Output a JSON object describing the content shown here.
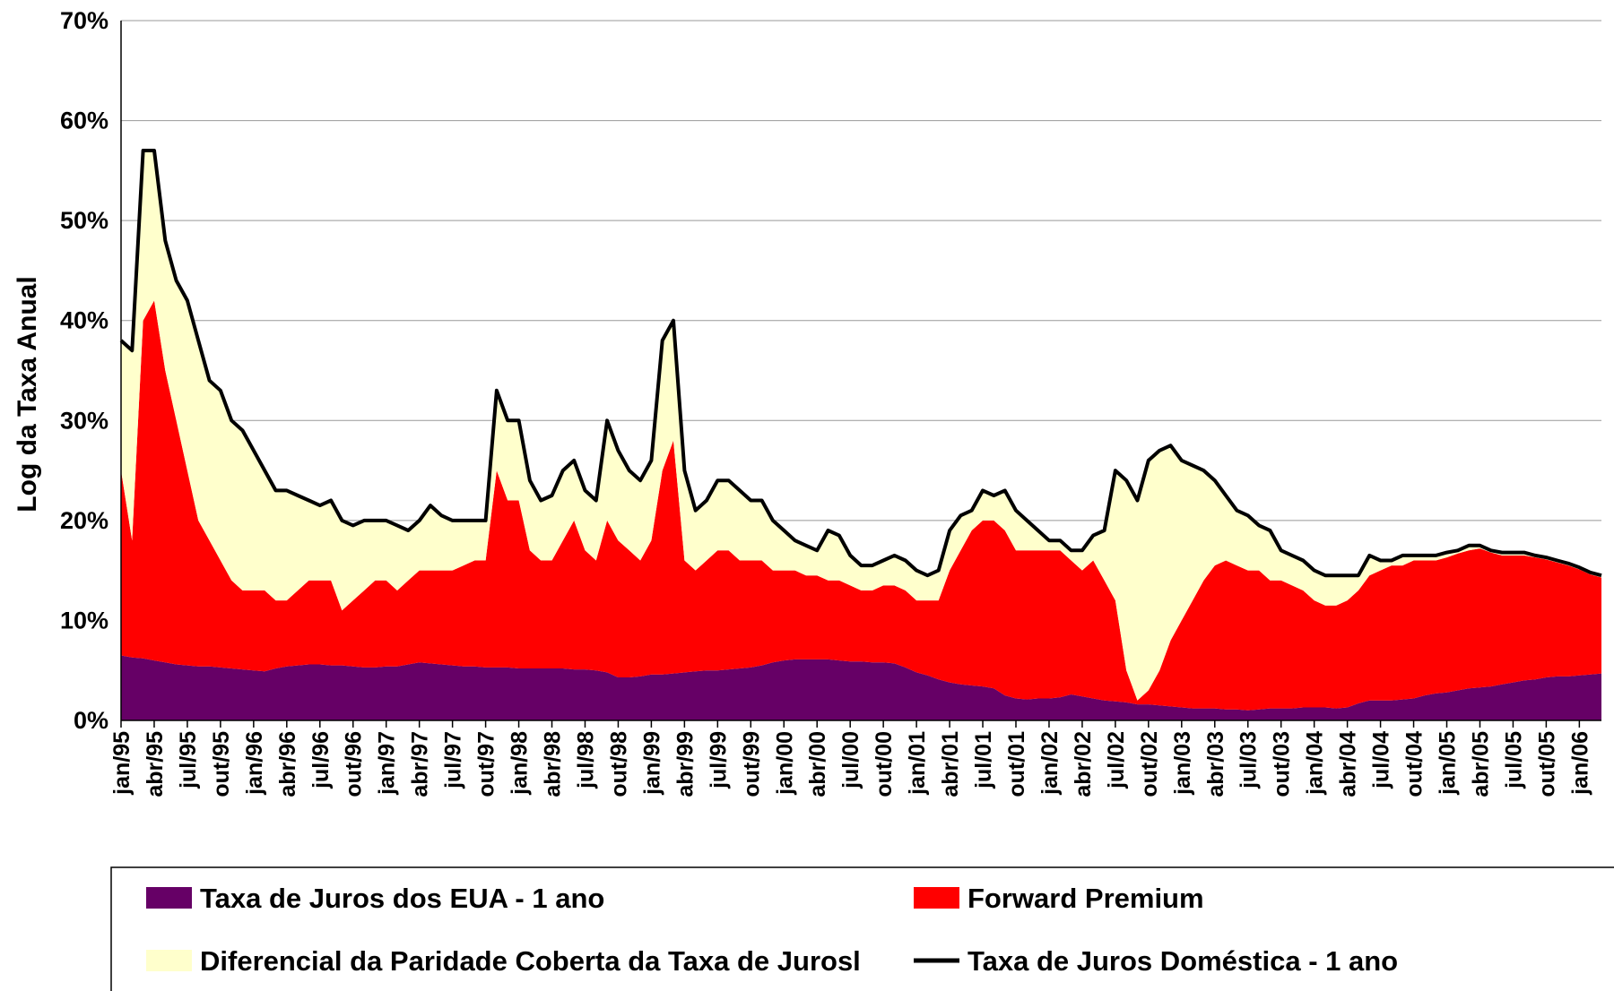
{
  "chart_data": {
    "type": "area",
    "y_label": "Log da Taxa Anual",
    "ylim": [
      0,
      70
    ],
    "yticks": [
      {
        "value": 0,
        "label": "0%"
      },
      {
        "value": 10,
        "label": "10%"
      },
      {
        "value": 20,
        "label": "20%"
      },
      {
        "value": 30,
        "label": "30%"
      },
      {
        "value": 40,
        "label": "40%"
      },
      {
        "value": 50,
        "label": "50%"
      },
      {
        "value": 60,
        "label": "60%"
      },
      {
        "value": 70,
        "label": "70%"
      }
    ],
    "grid": true,
    "categories": [
      "jan/95",
      null,
      null,
      "abr/95",
      null,
      null,
      "jul/95",
      null,
      null,
      "out/95",
      null,
      null,
      "jan/96",
      null,
      null,
      "abr/96",
      null,
      null,
      "jul/96",
      null,
      null,
      "out/96",
      null,
      null,
      "jan/97",
      null,
      null,
      "abr/97",
      null,
      null,
      "jul/97",
      null,
      null,
      "out/97",
      null,
      null,
      "jan/98",
      null,
      null,
      "abr/98",
      null,
      null,
      "jul/98",
      null,
      null,
      "out/98",
      null,
      null,
      "jan/99",
      null,
      null,
      "abr/99",
      null,
      null,
      "jul/99",
      null,
      null,
      "out/99",
      null,
      null,
      "jan/00",
      null,
      null,
      "abr/00",
      null,
      null,
      "jul/00",
      null,
      null,
      "out/00",
      null,
      null,
      "jan/01",
      null,
      null,
      "abr/01",
      null,
      null,
      "jul/01",
      null,
      null,
      "out/01",
      null,
      null,
      "jan/02",
      null,
      null,
      "abr/02",
      null,
      null,
      "jul/02",
      null,
      null,
      "out/02",
      null,
      null,
      "jan/03",
      null,
      null,
      "abr/03",
      null,
      null,
      "jul/03",
      null,
      null,
      "out/03",
      null,
      null,
      "jan/04",
      null,
      null,
      "abr/04",
      null,
      null,
      "jul/04",
      null,
      null,
      "out/04",
      null,
      null,
      "jan/05",
      null,
      null,
      "abr/05",
      null,
      null,
      "jul/05",
      null,
      null,
      "out/05",
      null,
      null,
      "jan/06",
      null,
      null
    ],
    "series": [
      {
        "name": "Taxa de Juros dos EUA - 1 ano",
        "type": "area",
        "color": "#660066",
        "values": [
          6.5,
          6.3,
          6.2,
          6,
          5.8,
          5.6,
          5.5,
          5.4,
          5.4,
          5.3,
          5.2,
          5.1,
          5,
          4.9,
          5.2,
          5.4,
          5.5,
          5.6,
          5.6,
          5.5,
          5.5,
          5.4,
          5.3,
          5.3,
          5.4,
          5.4,
          5.6,
          5.8,
          5.7,
          5.6,
          5.5,
          5.4,
          5.4,
          5.3,
          5.3,
          5.3,
          5.2,
          5.2,
          5.2,
          5.2,
          5.2,
          5.1,
          5.1,
          5,
          4.8,
          4.3,
          4.3,
          4.4,
          4.6,
          4.6,
          4.7,
          4.8,
          4.9,
          5,
          5,
          5.1,
          5.2,
          5.3,
          5.5,
          5.8,
          6,
          6.1,
          6.1,
          6.1,
          6.1,
          6,
          5.9,
          5.9,
          5.8,
          5.8,
          5.7,
          5.3,
          4.8,
          4.5,
          4.1,
          3.8,
          3.6,
          3.5,
          3.4,
          3.2,
          2.5,
          2.2,
          2.1,
          2.2,
          2.2,
          2.3,
          2.6,
          2.4,
          2.2,
          2,
          1.9,
          1.8,
          1.6,
          1.6,
          1.5,
          1.4,
          1.3,
          1.2,
          1.2,
          1.2,
          1.1,
          1.1,
          1,
          1.1,
          1.2,
          1.2,
          1.2,
          1.3,
          1.3,
          1.3,
          1.2,
          1.3,
          1.7,
          2,
          2,
          2,
          2.1,
          2.2,
          2.5,
          2.7,
          2.8,
          3,
          3.2,
          3.3,
          3.4,
          3.6,
          3.8,
          4,
          4.1,
          4.3,
          4.4,
          4.4,
          4.5,
          4.6,
          4.7
        ]
      },
      {
        "name": "Forward Premium",
        "type": "area",
        "color": "#ff0000",
        "values": [
          18.5,
          11.7,
          33.8,
          36,
          29.2,
          24.4,
          19.5,
          14.6,
          12.6,
          10.7,
          8.8,
          7.9,
          8,
          8.1,
          6.8,
          6.6,
          7.5,
          8.4,
          8.4,
          8.5,
          5.5,
          6.6,
          7.7,
          8.7,
          8.6,
          7.6,
          8.4,
          9.2,
          9.3,
          9.4,
          9.5,
          10.1,
          10.6,
          10.7,
          19.7,
          16.7,
          16.8,
          11.8,
          10.8,
          10.8,
          12.8,
          14.9,
          11.9,
          11,
          15.2,
          13.7,
          12.7,
          11.6,
          13.4,
          20.4,
          23.3,
          11.2,
          10.1,
          11,
          12,
          11.9,
          10.8,
          10.7,
          10.5,
          9.2,
          9,
          8.9,
          8.4,
          8.4,
          7.9,
          8,
          7.6,
          7.1,
          7.2,
          7.7,
          7.8,
          7.7,
          7.2,
          7.5,
          7.9,
          11.2,
          13.4,
          15.5,
          16.6,
          16.8,
          16.5,
          14.8,
          14.9,
          14.8,
          14.8,
          14.7,
          13.4,
          12.6,
          13.8,
          12,
          10.1,
          3.2,
          0.4,
          1.4,
          3.5,
          6.6,
          8.7,
          10.8,
          12.8,
          14.3,
          14.9,
          14.4,
          14,
          13.9,
          12.8,
          12.8,
          12.3,
          11.7,
          10.7,
          10.2,
          10.3,
          10.7,
          11.3,
          12.5,
          13,
          13.5,
          13.4,
          13.8,
          13.5,
          13.3,
          13.5,
          13.7,
          13.8,
          13.9,
          13.4,
          12.9,
          12.7,
          12.5,
          12.2,
          11.8,
          11.4,
          11.1,
          10.6,
          10,
          9.6
        ]
      },
      {
        "name": "Diferencial da Paridade Coberta da Taxa de Jurosl",
        "type": "area",
        "color": "#ffffcc",
        "values": [
          13,
          19,
          17,
          15,
          13,
          14,
          17,
          18,
          16,
          17,
          16,
          16,
          14,
          12,
          11,
          11,
          9.5,
          8,
          7.5,
          8,
          9,
          7.5,
          7,
          6,
          6,
          6.5,
          5,
          5,
          6.5,
          5.5,
          5,
          4.5,
          4,
          4,
          8,
          8,
          8,
          7,
          6,
          6.5,
          7,
          6,
          6,
          6,
          10,
          9,
          8,
          8,
          8,
          13,
          12,
          9,
          6,
          6,
          7,
          7,
          7,
          6,
          6,
          5,
          4,
          3,
          3,
          2.5,
          5,
          4.5,
          3,
          2.5,
          2.5,
          2.5,
          3,
          3,
          3,
          2.5,
          3,
          4,
          3.5,
          2,
          3,
          2.5,
          4,
          4,
          3,
          2,
          1,
          1,
          1,
          2,
          2.5,
          5,
          13,
          19,
          20,
          23,
          22,
          19.5,
          16,
          13.5,
          11,
          8.5,
          6.5,
          5.5,
          5.5,
          4.5,
          5,
          3,
          3,
          3,
          3,
          3,
          3,
          2.5,
          1.5,
          2,
          1,
          0.5,
          1,
          0.5,
          0.5,
          0.5,
          0.5,
          0.3,
          0.5,
          0.3,
          0.2,
          0.3,
          0.3,
          0.3,
          0.2,
          0.2,
          0.2,
          0.2,
          0.2,
          0.2,
          0.2
        ]
      },
      {
        "name": "Taxa de Juros Doméstica - 1 ano",
        "type": "line",
        "color": "#000000",
        "values": [
          38,
          37,
          57,
          57,
          48,
          44,
          42,
          38,
          34,
          33,
          30,
          29,
          27,
          25,
          23,
          23,
          22.5,
          22,
          21.5,
          22,
          20,
          19.5,
          20,
          20,
          20,
          19.5,
          19,
          20,
          21.5,
          20.5,
          20,
          20,
          20,
          20,
          33,
          30,
          30,
          24,
          22,
          22.5,
          25,
          26,
          23,
          22,
          30,
          27,
          25,
          24,
          26,
          38,
          40,
          25,
          21,
          22,
          24,
          24,
          23,
          22,
          22,
          20,
          19,
          18,
          17.5,
          17,
          19,
          18.5,
          16.5,
          15.5,
          15.5,
          16,
          16.5,
          16,
          15,
          14.5,
          15,
          19,
          20.5,
          21,
          23,
          22.5,
          23,
          21,
          20,
          19,
          18,
          18,
          17,
          17,
          18.5,
          19,
          25,
          24,
          22,
          26,
          27,
          27.5,
          26,
          25.5,
          25,
          24,
          22.5,
          21,
          20.5,
          19.5,
          19,
          17,
          16.5,
          16,
          15,
          14.5,
          14.5,
          14.5,
          14.5,
          16.5,
          16,
          16,
          16.5,
          16.5,
          16.5,
          16.5,
          16.8,
          17,
          17.5,
          17.5,
          17,
          16.8,
          16.8,
          16.8,
          16.5,
          16.3,
          16,
          15.7,
          15.3,
          14.8,
          14.5
        ]
      }
    ]
  }
}
